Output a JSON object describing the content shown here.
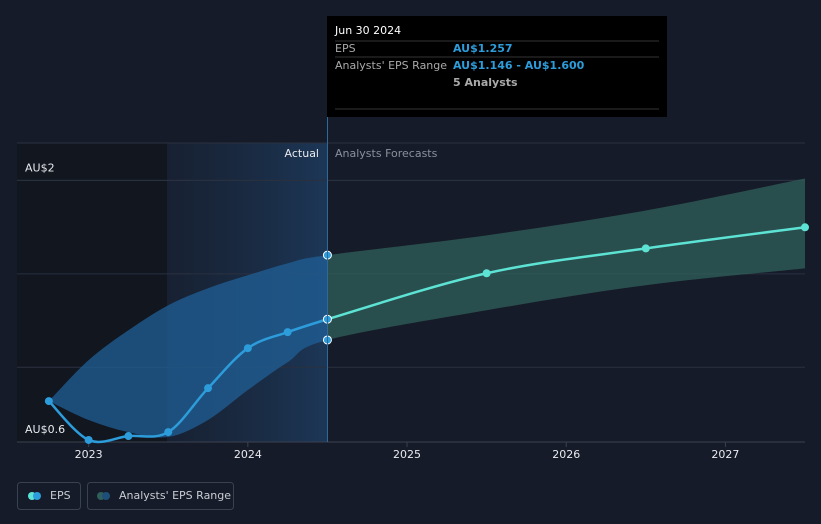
{
  "chart_data": {
    "type": "line",
    "xlim": [
      2022.55,
      2027.5
    ],
    "xticks": [
      2023,
      2024,
      2025,
      2026,
      2027
    ],
    "ylim": [
      0.6,
      2.2
    ],
    "yticks": [
      {
        "value": 0.6,
        "label": "AU$0.6"
      },
      {
        "value": 2,
        "label": "AU$2"
      }
    ],
    "ygrid": [
      1,
      1.5,
      2
    ],
    "series": [
      {
        "name": "EPS",
        "color": "#2d9cdb",
        "x": [
          2022.75,
          2023,
          2023.25,
          2023.5,
          2023.75,
          2024,
          2024.25,
          2024.5
        ],
        "values": [
          0.819,
          0.611,
          0.632,
          0.653,
          0.888,
          1.102,
          1.188,
          1.257
        ]
      }
    ],
    "forecast": {
      "color": "#5de3d4",
      "x": [
        2024.5,
        2025.5,
        2026.5,
        2027.5
      ],
      "values": [
        1.257,
        1.503,
        1.636,
        1.749
      ]
    },
    "range": {
      "name": "Analysts' EPS Range",
      "color": "#2f5f5a",
      "x": [
        2022.75,
        2023,
        2023.25,
        2023.5,
        2023.75,
        2024,
        2024.25,
        2024.5,
        2025.5,
        2026.5,
        2027.5
      ],
      "high": [
        0.819,
        1.038,
        1.198,
        1.332,
        1.423,
        1.492,
        1.556,
        1.6,
        1.706,
        1.839,
        2.01
      ],
      "low": [
        0.819,
        0.718,
        0.653,
        0.627,
        0.718,
        0.878,
        1.027,
        1.146,
        1.305,
        1.439,
        1.529
      ]
    },
    "region_labels": [
      "Actual",
      "Analysts Forecasts"
    ],
    "tooltip": {
      "date": "Jun 30 2024",
      "rows": [
        [
          "EPS",
          "AU$1.257"
        ],
        [
          "Analysts' EPS Range",
          "AU$1.146 - AU$1.600"
        ],
        [
          "",
          "5 Analysts"
        ]
      ]
    }
  }
}
